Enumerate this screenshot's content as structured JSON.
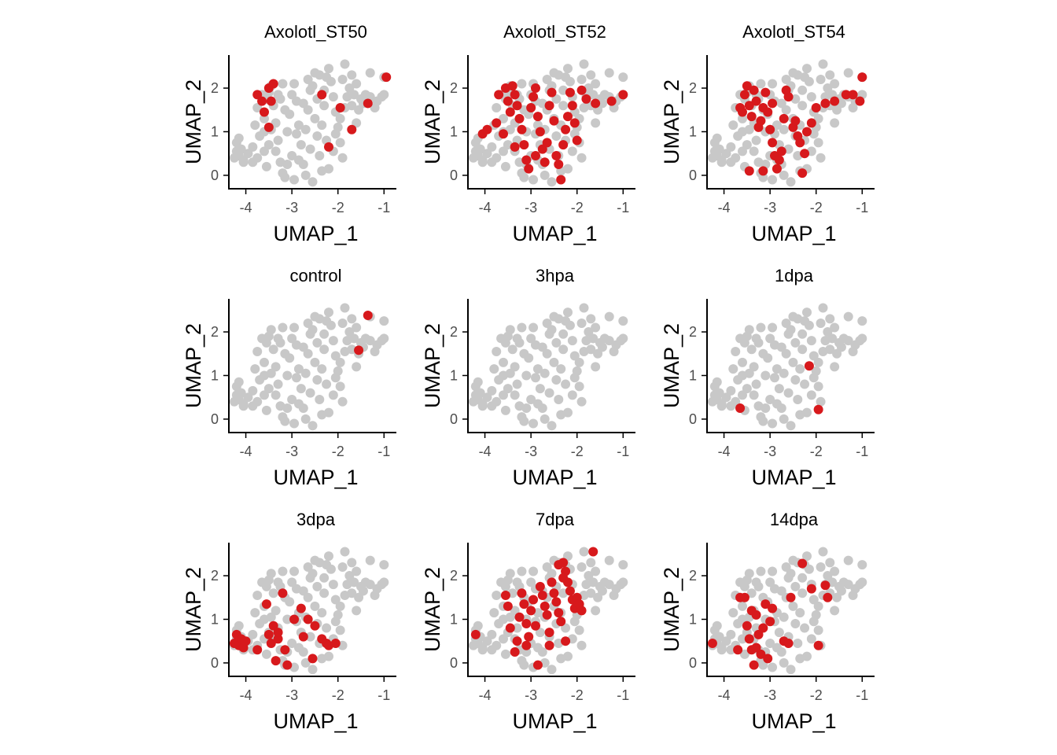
{
  "chart_data": {
    "type": "scatter",
    "layout": "3x3 small multiples",
    "xlabel": "UMAP_1",
    "ylabel": "UMAP_2",
    "xlim": [
      -4.3,
      -0.8
    ],
    "ylim": [
      -0.2,
      2.65
    ],
    "xticks": [
      -4,
      -3,
      -2,
      -1
    ],
    "yticks": [
      0,
      1,
      2
    ],
    "grid": false,
    "legend": "none",
    "colors": {
      "background_points": "#c8c8c8",
      "highlight_points": "#d7191c",
      "axis": "#000000",
      "tick_text": "#4d4d4d"
    },
    "background_points": [
      [
        -4.2,
        0.55
      ],
      [
        -4.15,
        0.45
      ],
      [
        -4.05,
        0.35
      ],
      [
        -4.25,
        0.4
      ],
      [
        -4.1,
        0.6
      ],
      [
        -3.95,
        0.5
      ],
      [
        -4.2,
        0.75
      ],
      [
        -4.05,
        0.3
      ],
      [
        -3.85,
        0.65
      ],
      [
        -3.75,
        0.4
      ],
      [
        -3.7,
        0.9
      ],
      [
        -3.6,
        0.55
      ],
      [
        -3.6,
        1.3
      ],
      [
        -3.55,
        1.75
      ],
      [
        -3.5,
        1.9
      ],
      [
        -3.45,
        2.05
      ],
      [
        -3.4,
        1.6
      ],
      [
        -3.35,
        1.2
      ],
      [
        -3.3,
        0.8
      ],
      [
        -3.25,
        0.3
      ],
      [
        -3.2,
        0.05
      ],
      [
        -3.15,
        -0.05
      ],
      [
        -3.1,
        1.0
      ],
      [
        -3.05,
        1.4
      ],
      [
        -3.0,
        1.85
      ],
      [
        -2.95,
        2.1
      ],
      [
        -2.9,
        1.7
      ],
      [
        -2.85,
        1.15
      ],
      [
        -2.8,
        0.7
      ],
      [
        -2.75,
        0.25
      ],
      [
        -2.7,
        0.0
      ],
      [
        -2.65,
        1.5
      ],
      [
        -2.6,
        1.95
      ],
      [
        -2.55,
        2.05
      ],
      [
        -2.5,
        1.3
      ],
      [
        -2.45,
        0.9
      ],
      [
        -2.4,
        0.45
      ],
      [
        -2.35,
        0.1
      ],
      [
        -2.3,
        1.6
      ],
      [
        -2.25,
        2.25
      ],
      [
        -2.2,
        2.45
      ],
      [
        -2.15,
        2.15
      ],
      [
        -2.1,
        1.8
      ],
      [
        -2.05,
        1.45
      ],
      [
        -2.0,
        1.1
      ],
      [
        -1.95,
        0.75
      ],
      [
        -1.9,
        0.4
      ],
      [
        -1.85,
        1.55
      ],
      [
        -1.8,
        1.8
      ],
      [
        -1.75,
        2.0
      ],
      [
        -1.7,
        1.6
      ],
      [
        -1.65,
        1.85
      ],
      [
        -1.6,
        2.1
      ],
      [
        -1.55,
        1.5
      ],
      [
        -1.5,
        1.75
      ],
      [
        -1.45,
        1.65
      ],
      [
        -1.4,
        1.85
      ],
      [
        -1.3,
        1.8
      ],
      [
        -1.2,
        1.55
      ],
      [
        -1.15,
        1.7
      ],
      [
        -1.05,
        1.8
      ],
      [
        -1.0,
        1.85
      ],
      [
        -1.0,
        2.25
      ],
      [
        -1.3,
        2.35
      ],
      [
        -1.85,
        2.55
      ],
      [
        -1.7,
        2.3
      ],
      [
        -2.4,
        2.3
      ],
      [
        -2.3,
        1.95
      ],
      [
        -3.2,
        2.1
      ],
      [
        -3.65,
        1.85
      ],
      [
        -3.75,
        1.55
      ],
      [
        -3.45,
        1.05
      ],
      [
        -3.0,
        0.45
      ],
      [
        -2.95,
        -0.1
      ],
      [
        -2.55,
        -0.15
      ],
      [
        -2.2,
        0.15
      ],
      [
        -2.9,
        0.95
      ],
      [
        -3.5,
        0.7
      ],
      [
        -3.85,
        0.3
      ],
      [
        -4.15,
        0.85
      ],
      [
        -3.3,
        1.85
      ],
      [
        -2.75,
        1.65
      ],
      [
        -2.6,
        0.6
      ],
      [
        -2.1,
        0.55
      ],
      [
        -2.05,
        0.95
      ],
      [
        -2.45,
        1.75
      ],
      [
        -3.15,
        1.5
      ],
      [
        -3.8,
        1.15
      ],
      [
        -3.55,
        0.2
      ],
      [
        -3.1,
        0.25
      ],
      [
        -2.35,
        1.15
      ],
      [
        -1.95,
        1.3
      ],
      [
        -2.65,
        2.2
      ],
      [
        -3.35,
        0.55
      ],
      [
        -2.85,
        0.35
      ],
      [
        -1.6,
        1.2
      ],
      [
        -2.25,
        0.8
      ],
      [
        -3.25,
        1.75
      ],
      [
        -2.7,
        1.05
      ],
      [
        -3.6,
        1.0
      ],
      [
        -2.5,
        2.35
      ],
      [
        -1.9,
        2.2
      ]
    ],
    "panels": [
      {
        "title": "Axolotl_ST50",
        "highlighted": [
          [
            -3.75,
            1.85
          ],
          [
            -3.65,
            1.7
          ],
          [
            -3.6,
            1.45
          ],
          [
            -3.5,
            2.0
          ],
          [
            -3.45,
            1.7
          ],
          [
            -3.4,
            2.1
          ],
          [
            -3.5,
            1.1
          ],
          [
            -2.35,
            1.85
          ],
          [
            -2.2,
            0.65
          ],
          [
            -1.95,
            1.55
          ],
          [
            -1.7,
            1.05
          ],
          [
            -1.35,
            1.65
          ],
          [
            -0.95,
            2.25
          ]
        ]
      },
      {
        "title": "Axolotl_ST52",
        "highlighted": [
          [
            -4.05,
            0.95
          ],
          [
            -3.95,
            1.05
          ],
          [
            -3.75,
            1.2
          ],
          [
            -3.7,
            1.85
          ],
          [
            -3.55,
            2.0
          ],
          [
            -3.5,
            1.7
          ],
          [
            -3.45,
            1.45
          ],
          [
            -3.4,
            2.05
          ],
          [
            -3.35,
            1.85
          ],
          [
            -3.3,
            1.6
          ],
          [
            -3.25,
            1.3
          ],
          [
            -3.2,
            1.05
          ],
          [
            -3.15,
            0.7
          ],
          [
            -3.1,
            0.35
          ],
          [
            -3.05,
            0.15
          ],
          [
            -3.0,
            1.55
          ],
          [
            -2.95,
            1.8
          ],
          [
            -2.9,
            2.0
          ],
          [
            -2.85,
            1.35
          ],
          [
            -2.8,
            1.0
          ],
          [
            -2.75,
            0.6
          ],
          [
            -2.7,
            0.3
          ],
          [
            -2.6,
            1.6
          ],
          [
            -2.55,
            1.9
          ],
          [
            -2.5,
            1.25
          ],
          [
            -2.45,
            0.45
          ],
          [
            -2.4,
            0.25
          ],
          [
            -2.35,
            -0.1
          ],
          [
            -2.3,
            0.7
          ],
          [
            -2.25,
            1.05
          ],
          [
            -2.2,
            1.35
          ],
          [
            -2.15,
            1.9
          ],
          [
            -2.1,
            1.6
          ],
          [
            -2.05,
            1.2
          ],
          [
            -2.0,
            0.8
          ],
          [
            -1.9,
            1.95
          ],
          [
            -1.8,
            1.75
          ],
          [
            -1.6,
            1.65
          ],
          [
            -1.25,
            1.7
          ],
          [
            -1.0,
            1.85
          ],
          [
            -3.6,
            0.95
          ],
          [
            -3.35,
            0.65
          ],
          [
            -2.9,
            0.45
          ],
          [
            -2.65,
            0.75
          ]
        ]
      },
      {
        "title": "Axolotl_ST54",
        "highlighted": [
          [
            -3.65,
            1.55
          ],
          [
            -3.6,
            1.45
          ],
          [
            -3.55,
            1.85
          ],
          [
            -3.5,
            2.05
          ],
          [
            -3.45,
            1.6
          ],
          [
            -3.4,
            1.35
          ],
          [
            -3.35,
            1.95
          ],
          [
            -3.3,
            1.7
          ],
          [
            -3.25,
            1.1
          ],
          [
            -3.2,
            1.25
          ],
          [
            -3.15,
            1.55
          ],
          [
            -3.1,
            1.9
          ],
          [
            -3.05,
            1.45
          ],
          [
            -3.0,
            1.05
          ],
          [
            -2.95,
            0.75
          ],
          [
            -2.9,
            0.45
          ],
          [
            -2.85,
            0.15
          ],
          [
            -2.8,
            0.35
          ],
          [
            -2.75,
            0.55
          ],
          [
            -2.7,
            1.3
          ],
          [
            -2.6,
            1.8
          ],
          [
            -2.5,
            1.1
          ],
          [
            -2.45,
            1.25
          ],
          [
            -2.4,
            0.9
          ],
          [
            -2.35,
            0.75
          ],
          [
            -2.3,
            0.05
          ],
          [
            -2.25,
            0.5
          ],
          [
            -2.2,
            1.0
          ],
          [
            -2.1,
            1.2
          ],
          [
            -2.0,
            1.55
          ],
          [
            -1.8,
            1.65
          ],
          [
            -1.6,
            1.7
          ],
          [
            -1.35,
            1.85
          ],
          [
            -1.2,
            1.85
          ],
          [
            -1.05,
            1.7
          ],
          [
            -1.0,
            2.25
          ],
          [
            -3.45,
            0.1
          ],
          [
            -3.15,
            0.1
          ],
          [
            -2.95,
            1.65
          ],
          [
            -2.65,
            1.95
          ]
        ]
      },
      {
        "title": "control",
        "highlighted": [
          [
            -1.35,
            2.38
          ],
          [
            -1.55,
            1.58
          ]
        ]
      },
      {
        "title": "3hpa",
        "highlighted": []
      },
      {
        "title": "1dpa",
        "highlighted": [
          [
            -2.15,
            1.22
          ],
          [
            -3.65,
            0.25
          ],
          [
            -1.95,
            0.22
          ]
        ]
      },
      {
        "title": "3dpa",
        "highlighted": [
          [
            -4.25,
            0.45
          ],
          [
            -4.2,
            0.65
          ],
          [
            -4.15,
            0.4
          ],
          [
            -4.1,
            0.55
          ],
          [
            -4.05,
            0.35
          ],
          [
            -4.0,
            0.5
          ],
          [
            -3.75,
            0.3
          ],
          [
            -3.55,
            1.35
          ],
          [
            -3.5,
            0.65
          ],
          [
            -3.45,
            0.45
          ],
          [
            -3.4,
            0.85
          ],
          [
            -3.35,
            0.05
          ],
          [
            -3.3,
            0.55
          ],
          [
            -3.2,
            1.6
          ],
          [
            -3.15,
            0.3
          ],
          [
            -3.1,
            -0.05
          ],
          [
            -2.95,
            1.0
          ],
          [
            -2.8,
            1.25
          ],
          [
            -2.75,
            0.6
          ],
          [
            -2.65,
            1.0
          ],
          [
            -2.55,
            0.1
          ],
          [
            -2.5,
            0.85
          ],
          [
            -2.35,
            0.55
          ],
          [
            -2.25,
            0.45
          ],
          [
            -2.2,
            0.4
          ],
          [
            -2.05,
            0.45
          ],
          [
            -3.3,
            0.7
          ]
        ]
      },
      {
        "title": "7dpa",
        "highlighted": [
          [
            -4.2,
            0.65
          ],
          [
            -3.55,
            1.55
          ],
          [
            -3.5,
            1.3
          ],
          [
            -3.45,
            0.8
          ],
          [
            -3.35,
            0.25
          ],
          [
            -3.3,
            0.5
          ],
          [
            -3.25,
            1.05
          ],
          [
            -3.2,
            1.6
          ],
          [
            -3.15,
            1.35
          ],
          [
            -3.1,
            0.9
          ],
          [
            -3.05,
            0.6
          ],
          [
            -3.0,
            1.2
          ],
          [
            -2.95,
            1.45
          ],
          [
            -2.9,
            0.85
          ],
          [
            -2.85,
            -0.05
          ],
          [
            -2.8,
            1.75
          ],
          [
            -2.75,
            1.55
          ],
          [
            -2.7,
            1.3
          ],
          [
            -2.65,
            1.1
          ],
          [
            -2.6,
            0.7
          ],
          [
            -2.55,
            1.85
          ],
          [
            -2.5,
            1.6
          ],
          [
            -2.45,
            1.4
          ],
          [
            -2.4,
            1.15
          ],
          [
            -2.35,
            0.95
          ],
          [
            -2.3,
            2.3
          ],
          [
            -2.25,
            2.1
          ],
          [
            -2.2,
            1.85
          ],
          [
            -2.15,
            1.65
          ],
          [
            -2.1,
            1.45
          ],
          [
            -2.05,
            1.25
          ],
          [
            -2.0,
            1.5
          ],
          [
            -1.95,
            1.35
          ],
          [
            -1.9,
            1.2
          ],
          [
            -1.65,
            2.55
          ],
          [
            -2.25,
            0.5
          ],
          [
            -2.6,
            0.4
          ],
          [
            -3.1,
            0.4
          ],
          [
            -2.3,
            1.95
          ],
          [
            -2.4,
            2.25
          ]
        ]
      },
      {
        "title": "14dpa",
        "highlighted": [
          [
            -4.25,
            0.45
          ],
          [
            -3.7,
            0.3
          ],
          [
            -3.65,
            1.5
          ],
          [
            -3.55,
            1.5
          ],
          [
            -3.5,
            0.85
          ],
          [
            -3.45,
            0.55
          ],
          [
            -3.4,
            0.3
          ],
          [
            -3.35,
            -0.05
          ],
          [
            -3.3,
            1.1
          ],
          [
            -3.25,
            0.65
          ],
          [
            -3.2,
            0.2
          ],
          [
            -3.15,
            0.8
          ],
          [
            -3.1,
            1.35
          ],
          [
            -3.05,
            0.1
          ],
          [
            -3.0,
            0.95
          ],
          [
            -2.95,
            1.25
          ],
          [
            -2.7,
            0.5
          ],
          [
            -2.6,
            0.45
          ],
          [
            -2.55,
            1.5
          ],
          [
            -2.3,
            2.28
          ],
          [
            -2.1,
            1.7
          ],
          [
            -1.95,
            0.4
          ],
          [
            -1.8,
            1.78
          ],
          [
            -1.75,
            1.5
          ],
          [
            -3.3,
            0.35
          ],
          [
            -3.4,
            1.2
          ]
        ]
      }
    ]
  }
}
